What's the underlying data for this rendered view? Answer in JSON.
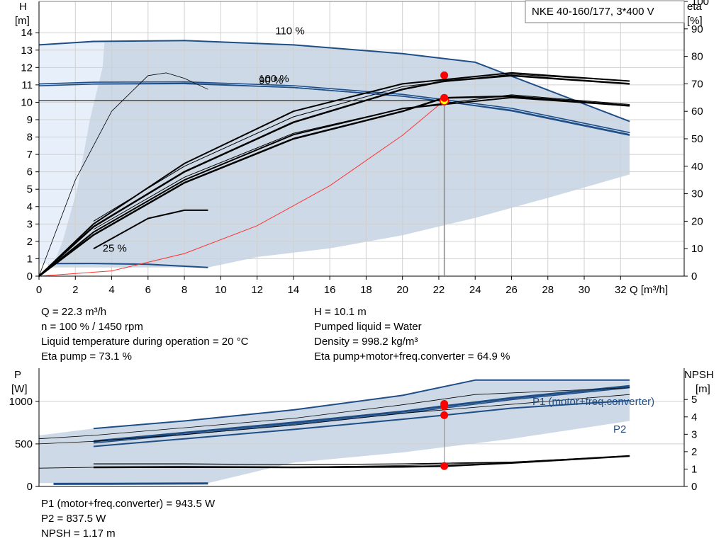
{
  "title": "NKE 40-160/177, 3*400 V",
  "chart_data": [
    {
      "type": "line",
      "name": "head",
      "xlabel": "Q [m³/h]",
      "ylabel_left": [
        "H",
        "[m]"
      ],
      "ylabel_right": [
        "eta",
        "[%]"
      ],
      "xlim": [
        0,
        35.5
      ],
      "xticks": [
        0,
        2,
        4,
        6,
        8,
        10,
        12,
        14,
        16,
        18,
        20,
        22,
        24,
        26,
        28,
        30,
        32
      ],
      "ylim_left": [
        0,
        15.8
      ],
      "yticks_left": [
        0,
        1,
        2,
        3,
        4,
        5,
        6,
        7,
        8,
        9,
        10,
        11,
        12,
        13,
        14
      ],
      "ylim_right": [
        0,
        100
      ],
      "yticks_right": [
        0,
        10,
        20,
        30,
        40,
        50,
        60,
        70,
        80,
        90,
        100
      ],
      "grid": true,
      "operating_area": {
        "upper": [
          [
            0,
            13.3
          ],
          [
            3,
            13.5
          ],
          [
            8,
            13.55
          ],
          [
            14,
            13.3
          ],
          [
            20,
            12.8
          ],
          [
            24,
            12.3
          ],
          [
            32.5,
            8.9
          ]
        ],
        "lower": [
          [
            32.5,
            5.85
          ],
          [
            28,
            4.5
          ],
          [
            24,
            3.35
          ],
          [
            20,
            2.35
          ],
          [
            16,
            1.6
          ],
          [
            12,
            1.1
          ],
          [
            9.3,
            0.5
          ],
          [
            0.5,
            0.5
          ]
        ],
        "light_area": [
          [
            0,
            0.7
          ],
          [
            0,
            13.3
          ],
          [
            3.6,
            13.45
          ],
          [
            3.5,
            12
          ],
          [
            2.8,
            9
          ],
          [
            2.1,
            5
          ],
          [
            1.3,
            2
          ],
          [
            0.8,
            0.7
          ]
        ]
      },
      "labels": [
        {
          "text": "110 %",
          "x": 13,
          "y": 13.9
        },
        {
          "text": "100 %",
          "x": 12.1,
          "y": 11.15
        },
        {
          "text": "90 %",
          "x": 12.1,
          "y": 11.05
        },
        {
          "text": "25 %",
          "x": 3.5,
          "y": 1.4
        }
      ],
      "series": [
        {
          "id": "h110",
          "points": [
            [
              0,
              13.3
            ],
            [
              3,
              13.5
            ],
            [
              8,
              13.55
            ],
            [
              14,
              13.3
            ],
            [
              20,
              12.8
            ],
            [
              24,
              12.3
            ],
            [
              32.5,
              8.9
            ]
          ]
        },
        {
          "id": "h100",
          "points": [
            [
              0,
              11
            ],
            [
              3,
              11.1
            ],
            [
              8,
              11.12
            ],
            [
              14,
              10.9
            ],
            [
              20,
              10.4
            ],
            [
              22.3,
              10.1
            ],
            [
              26,
              9.6
            ],
            [
              32.5,
              8.2
            ]
          ]
        },
        {
          "id": "h90",
          "points": [
            [
              3,
              11.05
            ],
            [
              8,
              11.1
            ],
            [
              14,
              10.85
            ],
            [
              20,
              10.35
            ],
            [
              22.3,
              10.05
            ],
            [
              26,
              9.5
            ],
            [
              32.5,
              8.1
            ]
          ]
        },
        {
          "id": "h25",
          "points": [
            [
              0.8,
              0.72
            ],
            [
              3,
              0.73
            ],
            [
              6,
              0.68
            ],
            [
              9.3,
              0.5
            ]
          ]
        },
        {
          "id": "system_curve",
          "points": [
            [
              0,
              0
            ],
            [
              4,
              0.3
            ],
            [
              8,
              1.3
            ],
            [
              12,
              2.9
            ],
            [
              16,
              5.2
            ],
            [
              20,
              8.1
            ],
            [
              22.3,
              10.1
            ]
          ]
        },
        {
          "id": "eta_pump_100",
          "points": [
            [
              0,
              0
            ],
            [
              3,
              18
            ],
            [
              8,
              38
            ],
            [
              14,
              56
            ],
            [
              20,
              68
            ],
            [
              22.3,
              71
            ],
            [
              26,
              73
            ],
            [
              32.5,
              70
            ]
          ]
        },
        {
          "id": "eta_pump_90",
          "points": [
            [
              3,
              20
            ],
            [
              8,
              40
            ],
            [
              14,
              58
            ],
            [
              20,
              69
            ],
            [
              26,
              73.5
            ],
            [
              32.5,
              71
            ]
          ]
        },
        {
          "id": "eta_pump_outer",
          "points": [
            [
              0,
              0
            ],
            [
              3,
              19
            ],
            [
              8,
              41
            ],
            [
              14,
              60
            ],
            [
              20,
              70
            ],
            [
              26,
              74
            ],
            [
              32.5,
              71
            ]
          ]
        },
        {
          "id": "eta_total_100",
          "points": [
            [
              0,
              0
            ],
            [
              3,
              15
            ],
            [
              8,
              34
            ],
            [
              14,
              50
            ],
            [
              20,
              60
            ],
            [
              22.3,
              64.9
            ],
            [
              26,
              65.5
            ],
            [
              32.5,
              62
            ]
          ]
        },
        {
          "id": "eta_total_90",
          "points": [
            [
              3,
              17
            ],
            [
              8,
              36
            ],
            [
              14,
              52
            ],
            [
              20,
              61
            ],
            [
              26,
              66
            ],
            [
              32.5,
              62.5
            ]
          ]
        },
        {
          "id": "eta_total_thin",
          "points": [
            [
              0,
              0
            ],
            [
              3,
              16
            ],
            [
              8,
              35
            ],
            [
              14,
              51.5
            ],
            [
              20,
              61
            ],
            [
              26,
              65
            ],
            [
              32.5,
              62
            ]
          ]
        },
        {
          "id": "eta_25",
          "points": [
            [
              3,
              10
            ],
            [
              6,
              21
            ],
            [
              8,
              24
            ],
            [
              9.3,
              24
            ]
          ]
        },
        {
          "id": "eta_thin_25",
          "points": [
            [
              0,
              0
            ],
            [
              2,
              35
            ],
            [
              4,
              60
            ],
            [
              6,
              73
            ],
            [
              7,
              74
            ],
            [
              8,
              72
            ],
            [
              9.3,
              68
            ]
          ]
        }
      ],
      "operating_point": {
        "x": 22.3,
        "h": 10.1,
        "eta_pump": 73.1,
        "eta_total": 64.9
      },
      "readings": [
        {
          "label": "Q = 22.3 m³/h"
        },
        {
          "label": "n = 100 % / 1450 rpm"
        },
        {
          "label": "Liquid temperature during operation = 20 °C"
        },
        {
          "label": "Eta pump = 73.1 %"
        },
        {
          "label": "H = 10.1 m"
        },
        {
          "label": "Pumped liquid = Water"
        },
        {
          "label": "Density = 998.2 kg/m³"
        },
        {
          "label": "Eta pump+motor+freq.converter = 64.9 %"
        }
      ]
    },
    {
      "type": "line",
      "name": "power",
      "ylabel_left": [
        "P",
        "[W]"
      ],
      "ylabel_right": [
        "NPSH",
        "[m]"
      ],
      "xlim": [
        0,
        35.5
      ],
      "ylim_left": [
        0,
        1390
      ],
      "yticks_left": [
        0,
        500,
        1000
      ],
      "ylim_right": [
        0,
        6.8
      ],
      "yticks_right": [
        0,
        1,
        2,
        3,
        4,
        5
      ],
      "grid": true,
      "operating_area": {
        "upper": [
          [
            0,
            600
          ],
          [
            3,
            680
          ],
          [
            8,
            770
          ],
          [
            14,
            900
          ],
          [
            20,
            1070
          ],
          [
            24,
            1250
          ],
          [
            32.5,
            1250
          ]
        ],
        "lower": [
          [
            32.5,
            770
          ],
          [
            26,
            560
          ],
          [
            20,
            400
          ],
          [
            14,
            280
          ],
          [
            9.3,
            40
          ],
          [
            0,
            40
          ]
        ]
      },
      "labels": [
        {
          "text": "P1 (motor+freq.converter)",
          "x": 28,
          "y": 1390
        },
        {
          "text": "P2",
          "x": 32.4,
          "y": 960
        }
      ],
      "series": [
        {
          "id": "p1_110",
          "points": [
            [
              3,
              680
            ],
            [
              8,
              770
            ],
            [
              14,
              900
            ],
            [
              20,
              1070
            ],
            [
              24,
              1250
            ],
            [
              32.5,
              1250
            ]
          ]
        },
        {
          "id": "p1_100",
          "points": [
            [
              3,
              530
            ],
            [
              8,
              630
            ],
            [
              14,
              750
            ],
            [
              20,
              880
            ],
            [
              22.3,
              943.5
            ],
            [
              26,
              1040
            ],
            [
              32.5,
              1180
            ]
          ]
        },
        {
          "id": "p1_90",
          "points": [
            [
              3,
              510
            ],
            [
              8,
              610
            ],
            [
              14,
              730
            ],
            [
              20,
              860
            ],
            [
              26,
              1020
            ],
            [
              32.5,
              1160
            ]
          ]
        },
        {
          "id": "p2_100",
          "points": [
            [
              3,
              470
            ],
            [
              8,
              560
            ],
            [
              14,
              670
            ],
            [
              20,
              790
            ],
            [
              22.3,
              837.5
            ],
            [
              26,
              920
            ],
            [
              32.5,
              1010
            ]
          ]
        },
        {
          "id": "p_thin_upper",
          "points": [
            [
              0,
              560
            ],
            [
              3,
              600
            ],
            [
              8,
              690
            ],
            [
              14,
              800
            ],
            [
              20,
              960
            ],
            [
              24,
              1080
            ],
            [
              32.5,
              1160
            ]
          ]
        },
        {
          "id": "p_thin_lower",
          "points": [
            [
              0,
              500
            ],
            [
              3,
              530
            ],
            [
              8,
              610
            ],
            [
              14,
              720
            ],
            [
              20,
              860
            ],
            [
              32.5,
              1080
            ]
          ]
        },
        {
          "id": "p_25",
          "points": [
            [
              0.8,
              30
            ],
            [
              4,
              32
            ],
            [
              9.3,
              35
            ]
          ]
        },
        {
          "id": "npsh_100",
          "points": [
            [
              3,
              1.1
            ],
            [
              8,
              1.12
            ],
            [
              14,
              1.1
            ],
            [
              20,
              1.13
            ],
            [
              22.3,
              1.17
            ],
            [
              26,
              1.35
            ],
            [
              32.5,
              1.75
            ]
          ]
        },
        {
          "id": "npsh_thin",
          "points": [
            [
              0,
              1.05
            ],
            [
              3,
              1.1
            ],
            [
              8,
              1.08
            ],
            [
              14,
              1.12
            ],
            [
              20,
              1.2
            ],
            [
              26,
              1.4
            ],
            [
              32.5,
              1.75
            ]
          ]
        },
        {
          "id": "npsh_upper",
          "points": [
            [
              3,
              1.3
            ],
            [
              8,
              1.3
            ],
            [
              14,
              1.25
            ],
            [
              20,
              1.3
            ],
            [
              26,
              1.4
            ],
            [
              32.5,
              1.75
            ]
          ]
        }
      ],
      "operating_point": {
        "x": 22.3,
        "p1": 943.5,
        "p2": 837.5,
        "npsh": 1.17,
        "p1_alt": 970
      },
      "readings": [
        {
          "label": "P1 (motor+freq.converter) = 943.5 W"
        },
        {
          "label": "P2 = 837.5 W"
        },
        {
          "label": "NPSH = 1.17 m"
        }
      ]
    }
  ]
}
